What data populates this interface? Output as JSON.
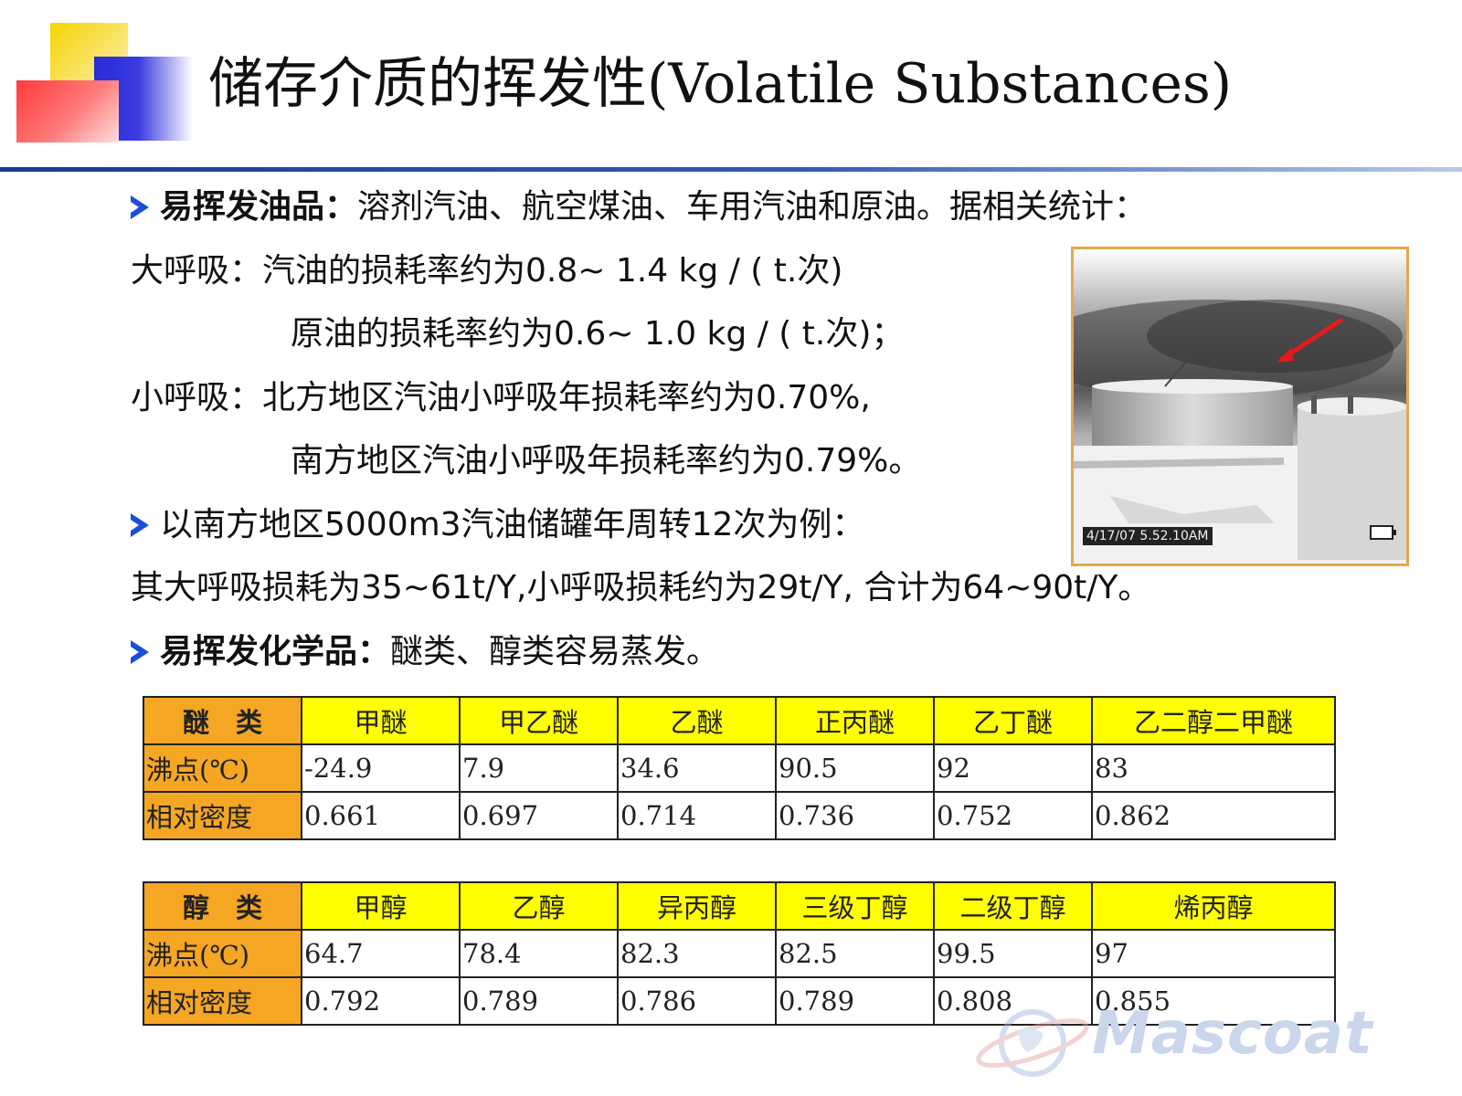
{
  "title": "储存介质的挥发性(Volatile Substances)",
  "colors": {
    "accent_blue": "#1c4fd8",
    "table_header_yellow": "#ffff00",
    "table_label_orange": "#f5a623",
    "photo_border": "#e3a94a"
  },
  "content": {
    "line1": {
      "label": "易挥发油品：",
      "text": "溶剂汽油、航空煤油、车用汽油和原油。据相关统计："
    },
    "line2": "大呼吸：汽油的损耗率约为0.8~ 1.4 kg / ( t.次)",
    "line3": "原油的损耗率约为0.6~ 1.0 kg / ( t.次)；",
    "line4": "小呼吸：北方地区汽油小呼吸年损耗率约为0.70%,",
    "line5": "南方地区汽油小呼吸年损耗率约为0.79%。",
    "line6": "以南方地区5000m3汽油储罐年周转12次为例：",
    "line7": "其大呼吸损耗为35~61t/Y,小呼吸损耗约为29t/Y, 合计为64~90t/Y。",
    "line8": {
      "label": "易挥发化学品：",
      "text": "醚类、醇类容易蒸发。"
    }
  },
  "photo": {
    "timestamp": "4/17/07  5.52.10AM"
  },
  "tables": {
    "ethers": {
      "header": [
        "醚　类",
        "甲醚",
        "甲乙醚",
        "乙醚",
        "正丙醚",
        "乙丁醚",
        "乙二醇二甲醚"
      ],
      "rows": [
        [
          "沸点(℃)",
          "-24.9",
          "7.9",
          "34.6",
          "90.5",
          "92",
          "83"
        ],
        [
          "相对密度",
          "0.661",
          "0.697",
          "0.714",
          "0.736",
          "0.752",
          "0.862"
        ]
      ]
    },
    "alcohols": {
      "header": [
        "醇　类",
        "甲醇",
        "乙醇",
        "异丙醇",
        "三级丁醇",
        "二级丁醇",
        "烯丙醇"
      ],
      "rows": [
        [
          "沸点(℃)",
          "64.7",
          "78.4",
          "82.3",
          "82.5",
          "99.5",
          "97"
        ],
        [
          "相对密度",
          "0.792",
          "0.789",
          "0.786",
          "0.789",
          "0.808",
          "0.855"
        ]
      ]
    }
  },
  "watermark": "Mascoat"
}
